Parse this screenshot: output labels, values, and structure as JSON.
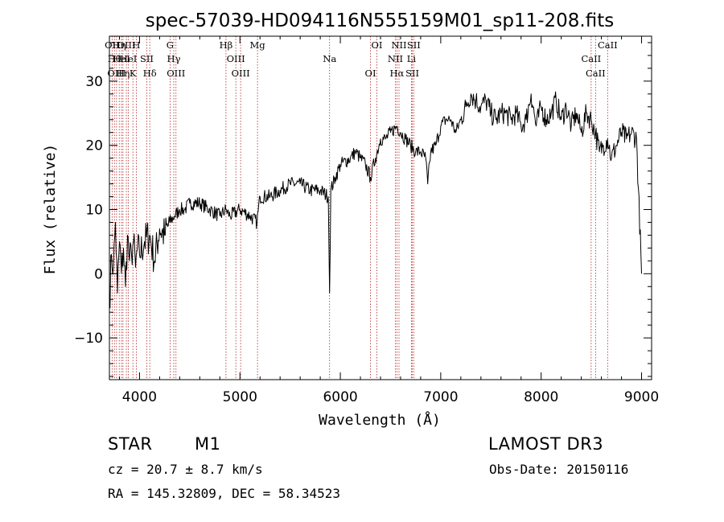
{
  "chart_data": {
    "type": "line",
    "title": "spec-57039-HD094116N555159M01_sp11-208.fits",
    "xlabel": "Wavelength (Å)",
    "ylabel": "Flux (relative)",
    "xlim": [
      3700,
      9100
    ],
    "ylim": [
      -16.5,
      37
    ],
    "xticks": [
      4000,
      5000,
      6000,
      7000,
      8000,
      9000
    ],
    "yticks": [
      -10,
      0,
      10,
      20,
      30
    ],
    "xtick_labels": [
      "4000",
      "5000",
      "6000",
      "7000",
      "8000",
      "9000"
    ],
    "ytick_labels": [
      "−10",
      "0",
      "10",
      "20",
      "30"
    ],
    "color": "#000000",
    "line_marker_color": "#b22222",
    "series": [
      {
        "x": [
          3700,
          3720,
          3740,
          3760,
          3780,
          3800,
          3820,
          3840,
          3860,
          3880,
          3900,
          3920,
          3940,
          3960,
          3980,
          4000,
          4050,
          4100,
          4150,
          4200,
          4250,
          4300,
          4350,
          4400,
          4450,
          4500,
          4600,
          4700,
          4800,
          4860,
          4900,
          5000,
          5100,
          5170,
          5200,
          5300,
          5400,
          5500,
          5600,
          5700,
          5800,
          5880,
          5893,
          5905,
          5950,
          6000,
          6100,
          6150,
          6200,
          6250,
          6300,
          6350,
          6400,
          6450,
          6500,
          6563,
          6600,
          6650,
          6700,
          6750,
          6800,
          6850,
          6870,
          6900,
          6950,
          7000,
          7050,
          7100,
          7150,
          7200,
          7250,
          7300,
          7350,
          7400,
          7450,
          7500,
          7550,
          7600,
          7650,
          7700,
          7750,
          7800,
          7850,
          7900,
          7950,
          8000,
          8050,
          8100,
          8150,
          8200,
          8250,
          8300,
          8350,
          8400,
          8450,
          8498,
          8542,
          8580,
          8620,
          8662,
          8700,
          8750,
          8800,
          8850,
          8900,
          8950,
          9000
        ],
        "y": [
          -5,
          3,
          1,
          8,
          -3,
          5,
          0,
          4,
          -2,
          6,
          2,
          3,
          5,
          1,
          4,
          3,
          5,
          6,
          2,
          7,
          6,
          8,
          9,
          10,
          10,
          11,
          11,
          10,
          9,
          10,
          9,
          10,
          9,
          8,
          12,
          12,
          13,
          14,
          14,
          13,
          13,
          12,
          -3,
          13,
          15,
          17,
          18,
          19,
          18,
          17,
          15,
          18,
          21,
          21,
          22,
          23,
          22,
          21,
          20,
          19,
          19,
          18,
          14,
          19,
          20,
          23,
          24,
          24,
          22,
          24,
          26,
          28,
          27,
          26,
          27,
          25,
          24,
          25,
          25,
          24,
          25,
          23,
          24,
          28,
          23,
          26,
          24,
          25,
          27,
          24,
          26,
          23,
          25,
          22,
          25,
          24,
          22,
          19,
          20,
          21,
          18,
          20,
          22,
          21,
          22,
          21,
          0
        ]
      }
    ],
    "spectral_lines": [
      {
        "wave": 3727,
        "label": "OII"
      },
      {
        "wave": 3750,
        "label": "Hθ"
      },
      {
        "wave": 3771,
        "label": "OIII"
      },
      {
        "wave": 3798,
        "label": "Hη"
      },
      {
        "wave": 3820,
        "label": "HeI"
      },
      {
        "wave": 3835,
        "label": "Hη"
      },
      {
        "wave": 3869,
        "label": "OIII"
      },
      {
        "wave": 3889,
        "label": "HeI"
      },
      {
        "wave": 3934,
        "label": "K"
      },
      {
        "wave": 3968,
        "label": "H"
      },
      {
        "wave": 4072,
        "label": "SII"
      },
      {
        "wave": 4102,
        "label": "Hδ"
      },
      {
        "wave": 4304,
        "label": "G"
      },
      {
        "wave": 4341,
        "label": "Hγ"
      },
      {
        "wave": 4363,
        "label": "OIII"
      },
      {
        "wave": 4861,
        "label": "Hβ"
      },
      {
        "wave": 4959,
        "label": "OIII"
      },
      {
        "wave": 5007,
        "label": "OIII"
      },
      {
        "wave": 5175,
        "label": "Mg"
      },
      {
        "wave": 5893,
        "label": "Na"
      },
      {
        "wave": 6300,
        "label": "OI"
      },
      {
        "wave": 6364,
        "label": "OI"
      },
      {
        "wave": 6548,
        "label": "NII"
      },
      {
        "wave": 6563,
        "label": "Hα"
      },
      {
        "wave": 6584,
        "label": "NII"
      },
      {
        "wave": 6708,
        "label": "Li"
      },
      {
        "wave": 6717,
        "label": "SII"
      },
      {
        "wave": 6731,
        "label": "SII"
      },
      {
        "wave": 8498,
        "label": "CaII"
      },
      {
        "wave": 8542,
        "label": "CaII"
      },
      {
        "wave": 8662,
        "label": "CaII"
      }
    ]
  },
  "info": {
    "object_type": "STAR",
    "subclass": "M1",
    "survey": "LAMOST DR3",
    "redshift_line": "cz = 20.7 ± 8.7 km/s",
    "obs_date": "Obs-Date: 20150116",
    "coords": "RA = 145.32809, DEC =  58.34523"
  }
}
